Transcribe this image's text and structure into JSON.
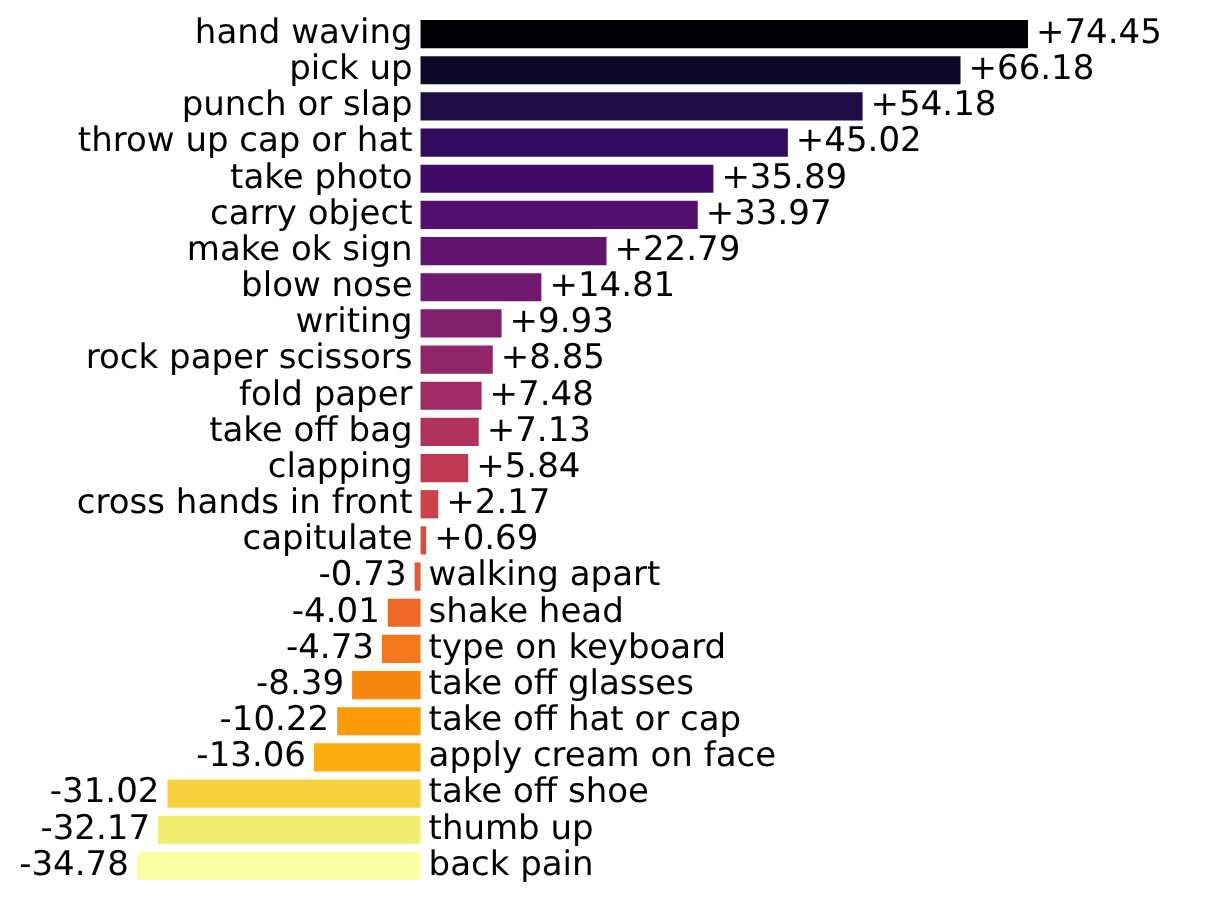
{
  "chart_data": {
    "type": "bar",
    "orientation": "horizontal",
    "categories": [
      "hand waving",
      "pick up",
      "punch or slap",
      "throw up cap or hat",
      "take photo",
      "carry object",
      "make ok sign",
      "blow nose",
      "writing",
      "rock paper scissors",
      "fold paper",
      "take off bag",
      "clapping",
      "cross hands in front",
      "capitulate",
      "walking apart",
      "shake head",
      "type on keyboard",
      "take off glasses",
      "take off hat or cap",
      "apply cream on face",
      "take off shoe",
      "thumb up",
      "back pain"
    ],
    "values": [
      74.45,
      66.18,
      54.18,
      45.02,
      35.89,
      33.97,
      22.79,
      14.81,
      9.93,
      8.85,
      7.48,
      7.13,
      5.84,
      2.17,
      0.69,
      -0.73,
      -4.01,
      -4.73,
      -8.39,
      -10.22,
      -13.06,
      -31.02,
      -32.17,
      -34.78
    ],
    "value_labels": [
      "+74.45",
      "+66.18",
      "+54.18",
      "+45.02",
      "+35.89",
      "+33.97",
      "+22.79",
      "+14.81",
      "+9.93",
      "+8.85",
      "+7.48",
      "+7.13",
      "+5.84",
      "+2.17",
      "+0.69",
      "-0.73",
      "-4.01",
      "-4.73",
      "-8.39",
      "-10.22",
      "-13.06",
      "-31.02",
      "-32.17",
      "-34.78"
    ],
    "colors": [
      "#000004",
      "#0d0829",
      "#1e0c45",
      "#320a5e",
      "#420a68",
      "#52106e",
      "#61136e",
      "#71196e",
      "#801f6c",
      "#902568",
      "#a02a63",
      "#b0315b",
      "#bf3952",
      "#cc4248",
      "#d94d3d",
      "#e45a31",
      "#ed6925",
      "#f37819",
      "#f8870e",
      "#fb9b06",
      "#fcad12",
      "#f7d13d",
      "#f1ed71",
      "#fcffa4"
    ]
  }
}
